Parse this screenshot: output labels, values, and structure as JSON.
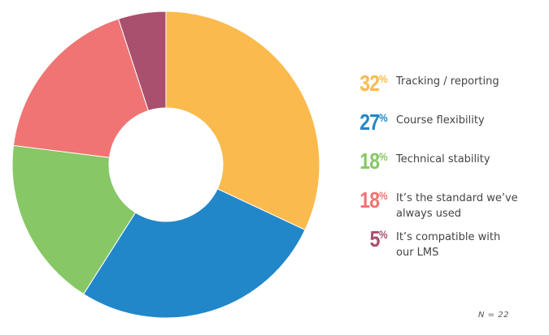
{
  "chart_data": {
    "type": "pie",
    "donut": true,
    "categories": [
      "Tracking / reporting",
      "Course flexibility",
      "Technical stability",
      "It’s the standard we’ve always used",
      "It’s compatible with our LMS"
    ],
    "values": [
      32,
      27,
      18,
      18,
      5
    ],
    "value_labels": [
      "32",
      "27",
      "18",
      "18",
      "5"
    ],
    "percent_symbol": "%",
    "colors": [
      "#FBBA4D",
      "#2187C9",
      "#87C766",
      "#EF7473",
      "#A8506D"
    ],
    "legend_labels": [
      "Tracking / reporting",
      "Course flexibility",
      "Technical stability",
      "It’s the standard we’ve\nalways used",
      "It’s compatible with\nour LMS"
    ],
    "legend_position": "right",
    "start_angle_deg": 0,
    "direction": "clockwise"
  },
  "footnote": "N = 22"
}
